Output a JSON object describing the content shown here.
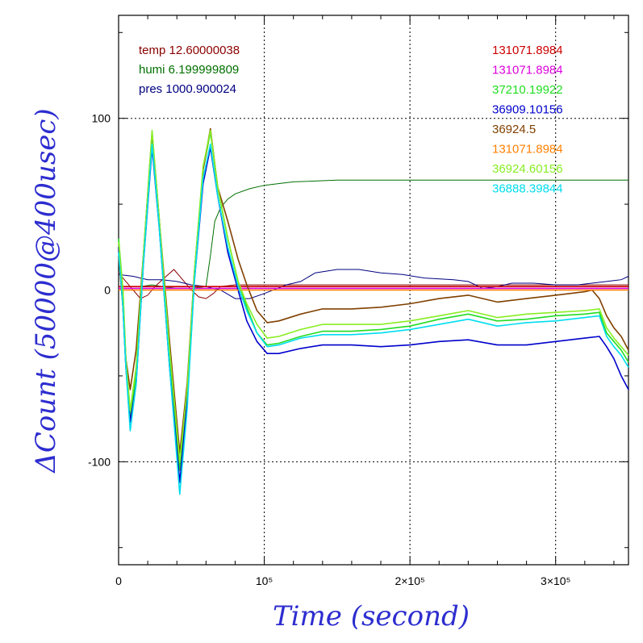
{
  "chart_data": {
    "type": "line",
    "xlabel": "Time (second)",
    "ylabel": "ΔCount (50000@400usec)",
    "xlim": [
      0,
      350000
    ],
    "ylim": [
      -160,
      160
    ],
    "xticks": [
      {
        "value": 0,
        "label": "0"
      },
      {
        "value": 100000,
        "label": "10⁵"
      },
      {
        "value": 200000,
        "label": "2×10⁵"
      },
      {
        "value": 300000,
        "label": "3×10⁵"
      }
    ],
    "yticks": [
      {
        "value": 100,
        "label": "100"
      },
      {
        "value": 0,
        "label": "0"
      },
      {
        "value": -100,
        "label": "-100"
      }
    ],
    "grid": true,
    "env_labels": [
      {
        "text": "temp 12.60000038",
        "color": "#8b0000"
      },
      {
        "text": "humi 6.199999809",
        "color": "#007000"
      },
      {
        "text": "pres 1000.900024",
        "color": "#000080"
      }
    ],
    "series": [
      {
        "name": "131071.8984",
        "color": "#cc0000",
        "points": [
          [
            0,
            2
          ],
          [
            350000,
            2
          ]
        ]
      },
      {
        "name": "131071.8984",
        "color": "#dd00dd",
        "points": [
          [
            0,
            1
          ],
          [
            350000,
            1
          ]
        ]
      },
      {
        "name": "37210.19922",
        "color": "#22dd22",
        "points": [
          [
            0,
            30
          ],
          [
            3000,
            0
          ],
          [
            5000,
            -40
          ],
          [
            8000,
            -75
          ],
          [
            12000,
            -50
          ],
          [
            17000,
            20
          ],
          [
            23000,
            90
          ],
          [
            28000,
            40
          ],
          [
            35000,
            -40
          ],
          [
            42000,
            -105
          ],
          [
            47000,
            -60
          ],
          [
            52000,
            10
          ],
          [
            58000,
            70
          ],
          [
            63000,
            92
          ],
          [
            68000,
            60
          ],
          [
            75000,
            30
          ],
          [
            82000,
            5
          ],
          [
            88000,
            -10
          ],
          [
            95000,
            -25
          ],
          [
            102000,
            -32
          ],
          [
            110000,
            -31
          ],
          [
            125000,
            -27
          ],
          [
            140000,
            -24
          ],
          [
            160000,
            -24
          ],
          [
            180000,
            -23
          ],
          [
            200000,
            -21
          ],
          [
            220000,
            -17
          ],
          [
            240000,
            -14
          ],
          [
            260000,
            -18
          ],
          [
            280000,
            -17
          ],
          [
            300000,
            -15
          ],
          [
            320000,
            -14
          ],
          [
            330000,
            -13
          ],
          [
            335000,
            -25
          ],
          [
            340000,
            -30
          ],
          [
            345000,
            -35
          ],
          [
            350000,
            -42
          ]
        ]
      },
      {
        "name": "36909.10156",
        "color": "#0000cc",
        "points": [
          [
            0,
            25
          ],
          [
            3000,
            -10
          ],
          [
            5000,
            -45
          ],
          [
            8000,
            -77
          ],
          [
            12000,
            -55
          ],
          [
            17000,
            15
          ],
          [
            23000,
            83
          ],
          [
            28000,
            35
          ],
          [
            35000,
            -45
          ],
          [
            42000,
            -112
          ],
          [
            47000,
            -65
          ],
          [
            52000,
            5
          ],
          [
            58000,
            62
          ],
          [
            63000,
            83
          ],
          [
            68000,
            55
          ],
          [
            75000,
            22
          ],
          [
            82000,
            0
          ],
          [
            88000,
            -18
          ],
          [
            95000,
            -30
          ],
          [
            102000,
            -37
          ],
          [
            110000,
            -37
          ],
          [
            125000,
            -34
          ],
          [
            140000,
            -32
          ],
          [
            160000,
            -32
          ],
          [
            180000,
            -33
          ],
          [
            200000,
            -32
          ],
          [
            220000,
            -30
          ],
          [
            240000,
            -29
          ],
          [
            260000,
            -32
          ],
          [
            280000,
            -32
          ],
          [
            300000,
            -30
          ],
          [
            320000,
            -28
          ],
          [
            330000,
            -27
          ],
          [
            335000,
            -33
          ],
          [
            340000,
            -40
          ],
          [
            345000,
            -50
          ],
          [
            350000,
            -58
          ]
        ]
      },
      {
        "name": "36924.5",
        "color": "#804000",
        "points": [
          [
            0,
            20
          ],
          [
            3000,
            -10
          ],
          [
            5000,
            -40
          ],
          [
            8000,
            -58
          ],
          [
            12000,
            -35
          ],
          [
            17000,
            20
          ],
          [
            23000,
            92
          ],
          [
            28000,
            40
          ],
          [
            35000,
            -30
          ],
          [
            42000,
            -95
          ],
          [
            47000,
            -55
          ],
          [
            52000,
            10
          ],
          [
            58000,
            70
          ],
          [
            63000,
            94
          ],
          [
            68000,
            60
          ],
          [
            75000,
            40
          ],
          [
            82000,
            18
          ],
          [
            88000,
            3
          ],
          [
            95000,
            -12
          ],
          [
            102000,
            -19
          ],
          [
            110000,
            -18
          ],
          [
            125000,
            -14
          ],
          [
            140000,
            -11
          ],
          [
            160000,
            -11
          ],
          [
            180000,
            -10
          ],
          [
            200000,
            -8
          ],
          [
            220000,
            -5
          ],
          [
            240000,
            -3
          ],
          [
            260000,
            -7
          ],
          [
            280000,
            -5
          ],
          [
            300000,
            -3
          ],
          [
            320000,
            -1
          ],
          [
            325000,
            0
          ],
          [
            330000,
            -5
          ],
          [
            335000,
            -15
          ],
          [
            340000,
            -22
          ],
          [
            345000,
            -27
          ],
          [
            350000,
            -35
          ]
        ]
      },
      {
        "name": "131071.8984",
        "color": "#ff8000",
        "points": [
          [
            0,
            0
          ],
          [
            350000,
            0
          ]
        ]
      },
      {
        "name": "36924.60156",
        "color": "#88ee22",
        "points": [
          [
            0,
            28
          ],
          [
            3000,
            0
          ],
          [
            5000,
            -40
          ],
          [
            8000,
            -70
          ],
          [
            12000,
            -45
          ],
          [
            17000,
            20
          ],
          [
            23000,
            93
          ],
          [
            28000,
            40
          ],
          [
            35000,
            -35
          ],
          [
            42000,
            -100
          ],
          [
            47000,
            -58
          ],
          [
            52000,
            10
          ],
          [
            58000,
            72
          ],
          [
            63000,
            93
          ],
          [
            68000,
            60
          ],
          [
            75000,
            30
          ],
          [
            82000,
            5
          ],
          [
            88000,
            -8
          ],
          [
            95000,
            -20
          ],
          [
            102000,
            -28
          ],
          [
            110000,
            -27
          ],
          [
            125000,
            -23
          ],
          [
            140000,
            -20
          ],
          [
            160000,
            -20
          ],
          [
            180000,
            -20
          ],
          [
            200000,
            -18
          ],
          [
            220000,
            -15
          ],
          [
            240000,
            -12
          ],
          [
            260000,
            -16
          ],
          [
            280000,
            -14
          ],
          [
            300000,
            -13
          ],
          [
            320000,
            -12
          ],
          [
            330000,
            -11
          ],
          [
            335000,
            -22
          ],
          [
            340000,
            -28
          ],
          [
            345000,
            -33
          ],
          [
            350000,
            -38
          ]
        ]
      },
      {
        "name": "36888.39844",
        "color": "#00ddee",
        "points": [
          [
            0,
            22
          ],
          [
            3000,
            -10
          ],
          [
            5000,
            -45
          ],
          [
            8000,
            -82
          ],
          [
            12000,
            -55
          ],
          [
            17000,
            15
          ],
          [
            23000,
            85
          ],
          [
            28000,
            35
          ],
          [
            35000,
            -45
          ],
          [
            42000,
            -119
          ],
          [
            47000,
            -70
          ],
          [
            52000,
            5
          ],
          [
            58000,
            65
          ],
          [
            63000,
            85
          ],
          [
            68000,
            55
          ],
          [
            75000,
            25
          ],
          [
            82000,
            2
          ],
          [
            88000,
            -12
          ],
          [
            95000,
            -25
          ],
          [
            102000,
            -33
          ],
          [
            110000,
            -32
          ],
          [
            125000,
            -28
          ],
          [
            140000,
            -26
          ],
          [
            160000,
            -26
          ],
          [
            180000,
            -25
          ],
          [
            200000,
            -23
          ],
          [
            220000,
            -20
          ],
          [
            240000,
            -17
          ],
          [
            260000,
            -21
          ],
          [
            280000,
            -19
          ],
          [
            300000,
            -18
          ],
          [
            320000,
            -16
          ],
          [
            330000,
            -15
          ],
          [
            335000,
            -27
          ],
          [
            340000,
            -33
          ],
          [
            345000,
            -38
          ],
          [
            350000,
            -45
          ]
        ]
      }
    ],
    "env_series": [
      {
        "name": "temp",
        "color": "#8b0000",
        "points": [
          [
            0,
            10
          ],
          [
            5000,
            5
          ],
          [
            10000,
            0
          ],
          [
            15000,
            -5
          ],
          [
            20000,
            -3
          ],
          [
            25000,
            2
          ],
          [
            30000,
            6
          ],
          [
            38000,
            12
          ],
          [
            45000,
            5
          ],
          [
            50000,
            0
          ],
          [
            55000,
            -4
          ],
          [
            60000,
            -5
          ],
          [
            65000,
            -2
          ],
          [
            70000,
            2
          ],
          [
            80000,
            3
          ],
          [
            120000,
            3
          ],
          [
            200000,
            3
          ],
          [
            280000,
            3
          ],
          [
            350000,
            3
          ]
        ]
      },
      {
        "name": "humi",
        "color": "#007000",
        "points": [
          [
            0,
            2
          ],
          [
            15000,
            2
          ],
          [
            23000,
            3
          ],
          [
            30000,
            2
          ],
          [
            40000,
            1
          ],
          [
            50000,
            1
          ],
          [
            60000,
            2
          ],
          [
            63000,
            20
          ],
          [
            66000,
            40
          ],
          [
            70000,
            48
          ],
          [
            75000,
            53
          ],
          [
            80000,
            56
          ],
          [
            90000,
            59
          ],
          [
            100000,
            61
          ],
          [
            120000,
            63
          ],
          [
            150000,
            64
          ],
          [
            200000,
            64
          ],
          [
            260000,
            64
          ],
          [
            300000,
            64
          ],
          [
            350000,
            64
          ]
        ]
      },
      {
        "name": "pres",
        "color": "#000080",
        "points": [
          [
            0,
            9
          ],
          [
            10000,
            8
          ],
          [
            20000,
            6
          ],
          [
            30000,
            6
          ],
          [
            40000,
            5
          ],
          [
            50000,
            3
          ],
          [
            60000,
            2
          ],
          [
            70000,
            0
          ],
          [
            80000,
            -5
          ],
          [
            90000,
            -5
          ],
          [
            100000,
            -2
          ],
          [
            115000,
            3
          ],
          [
            125000,
            5
          ],
          [
            135000,
            10
          ],
          [
            150000,
            12
          ],
          [
            165000,
            12
          ],
          [
            180000,
            10
          ],
          [
            195000,
            9
          ],
          [
            210000,
            7
          ],
          [
            230000,
            6
          ],
          [
            240000,
            5
          ],
          [
            250000,
            1
          ],
          [
            260000,
            2
          ],
          [
            270000,
            4
          ],
          [
            285000,
            4
          ],
          [
            300000,
            3
          ],
          [
            315000,
            3
          ],
          [
            325000,
            4
          ],
          [
            335000,
            5
          ],
          [
            345000,
            6
          ],
          [
            350000,
            8
          ]
        ]
      }
    ]
  }
}
